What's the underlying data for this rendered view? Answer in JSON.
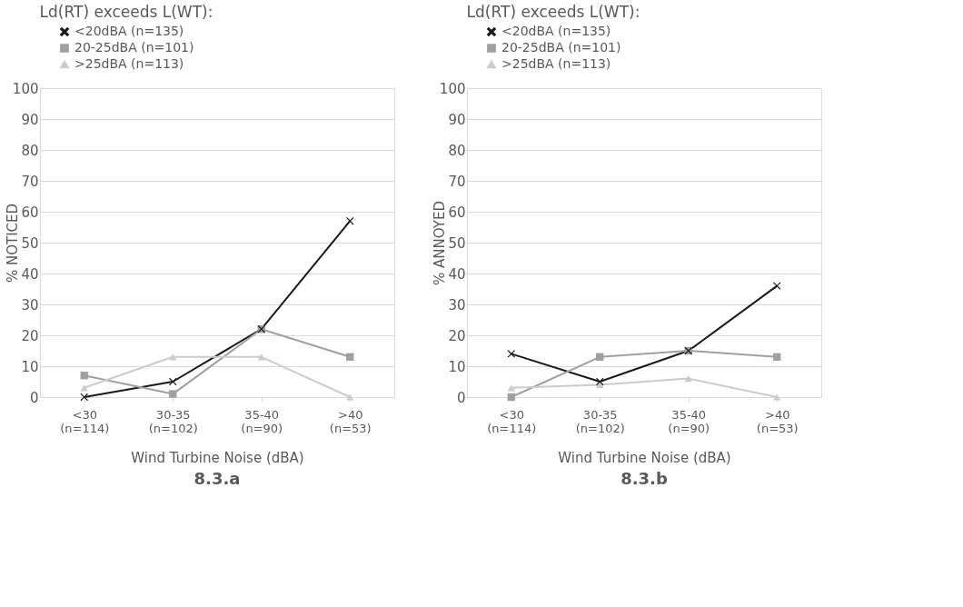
{
  "chart_data": [
    {
      "type": "line",
      "title": "8.3.a",
      "xlabel": "Wind Turbine Noise (dBA)",
      "ylabel": "% NOTICED",
      "legend_title": "Ld(RT) exceeds L(WT):",
      "categories": [
        "<30 (n=114)",
        "30-35 (n=102)",
        "35-40 (n=90)",
        ">40 (n=53)"
      ],
      "ylim": [
        0,
        100
      ],
      "yticks": [
        0,
        10,
        20,
        30,
        40,
        50,
        60,
        70,
        80,
        90,
        100
      ],
      "grid": "y",
      "legend": "top",
      "line_style": "solid",
      "series": [
        {
          "name": "<20dBA (n=135)",
          "color": "#1a1a1a",
          "marker": "cross",
          "values": [
            0,
            5,
            22,
            57
          ]
        },
        {
          "name": "20-25dBA (n=101)",
          "color": "#a0a0a0",
          "marker": "square",
          "values": [
            7,
            1,
            22,
            13
          ]
        },
        {
          "name": ">25dBA (n=113)",
          "color": "#cccccc",
          "marker": "triangle",
          "values": [
            3,
            13,
            13,
            0
          ]
        }
      ]
    },
    {
      "type": "line",
      "title": "8.3.b",
      "xlabel": "Wind Turbine Noise (dBA)",
      "ylabel": "% ANNOYED",
      "legend_title": "Ld(RT) exceeds L(WT):",
      "categories": [
        "<30 (n=114)",
        "30-35 (n=102)",
        "35-40 (n=90)",
        ">40 (n=53)"
      ],
      "ylim": [
        0,
        100
      ],
      "yticks": [
        0,
        10,
        20,
        30,
        40,
        50,
        60,
        70,
        80,
        90,
        100
      ],
      "grid": "y",
      "legend": "top",
      "line_style": "solid",
      "series": [
        {
          "name": "<20dBA (n=135)",
          "color": "#1a1a1a",
          "marker": "cross",
          "values": [
            14,
            5,
            15,
            36
          ]
        },
        {
          "name": "20-25dBA (n=101)",
          "color": "#a0a0a0",
          "marker": "square",
          "values": [
            0,
            13,
            15,
            13
          ]
        },
        {
          "name": ">25dBA (n=113)",
          "color": "#cccccc",
          "marker": "triangle",
          "values": [
            3,
            4,
            6,
            0
          ]
        }
      ]
    }
  ]
}
